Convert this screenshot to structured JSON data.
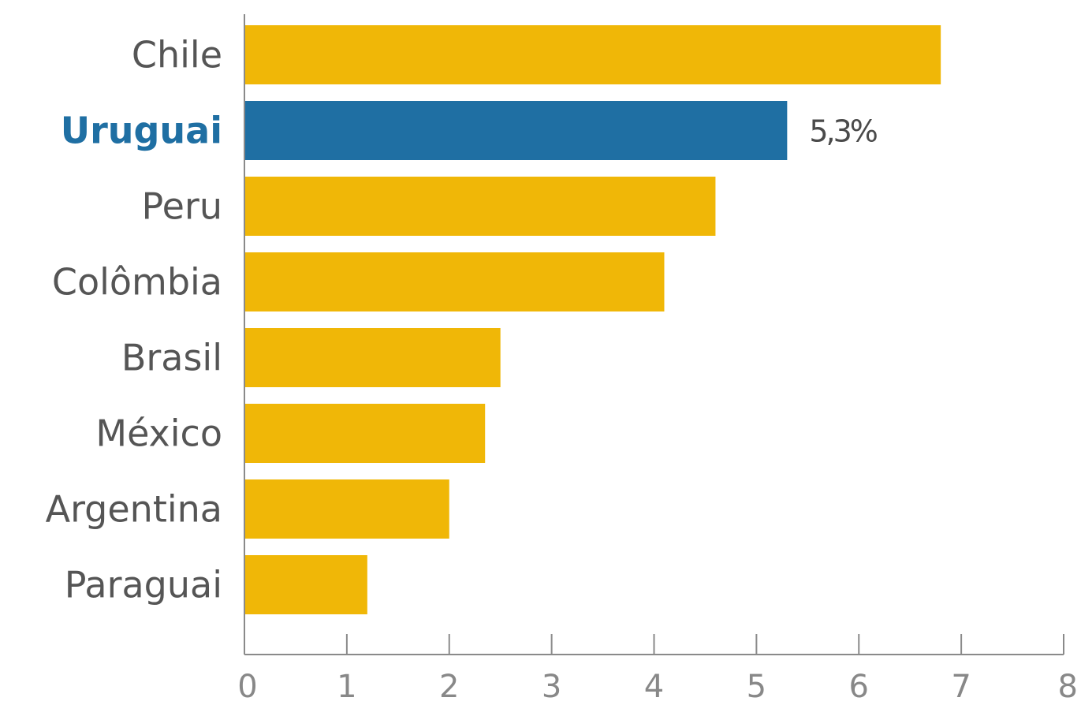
{
  "chart_data": {
    "type": "bar",
    "orientation": "horizontal",
    "categories": [
      "Chile",
      "Uruguai",
      "Peru",
      "Colômbia",
      "Brasil",
      "México",
      "Argentina",
      "Paraguai"
    ],
    "values": [
      6.8,
      5.3,
      4.6,
      4.1,
      2.5,
      2.35,
      2.0,
      1.2
    ],
    "highlight": "Uruguai",
    "data_labels": [
      {
        "category": "Uruguai",
        "text": "5,3%"
      }
    ],
    "xlim": [
      0,
      8
    ],
    "xticks": [
      "0",
      "1",
      "2",
      "3",
      "4",
      "5",
      "6",
      "7",
      "8"
    ],
    "title": "",
    "xlabel": "",
    "ylabel": "",
    "grid": false,
    "colors": {
      "bar": "#f0b707",
      "highlight": "#1f6fa3",
      "axis": "#8a8a8a"
    }
  }
}
